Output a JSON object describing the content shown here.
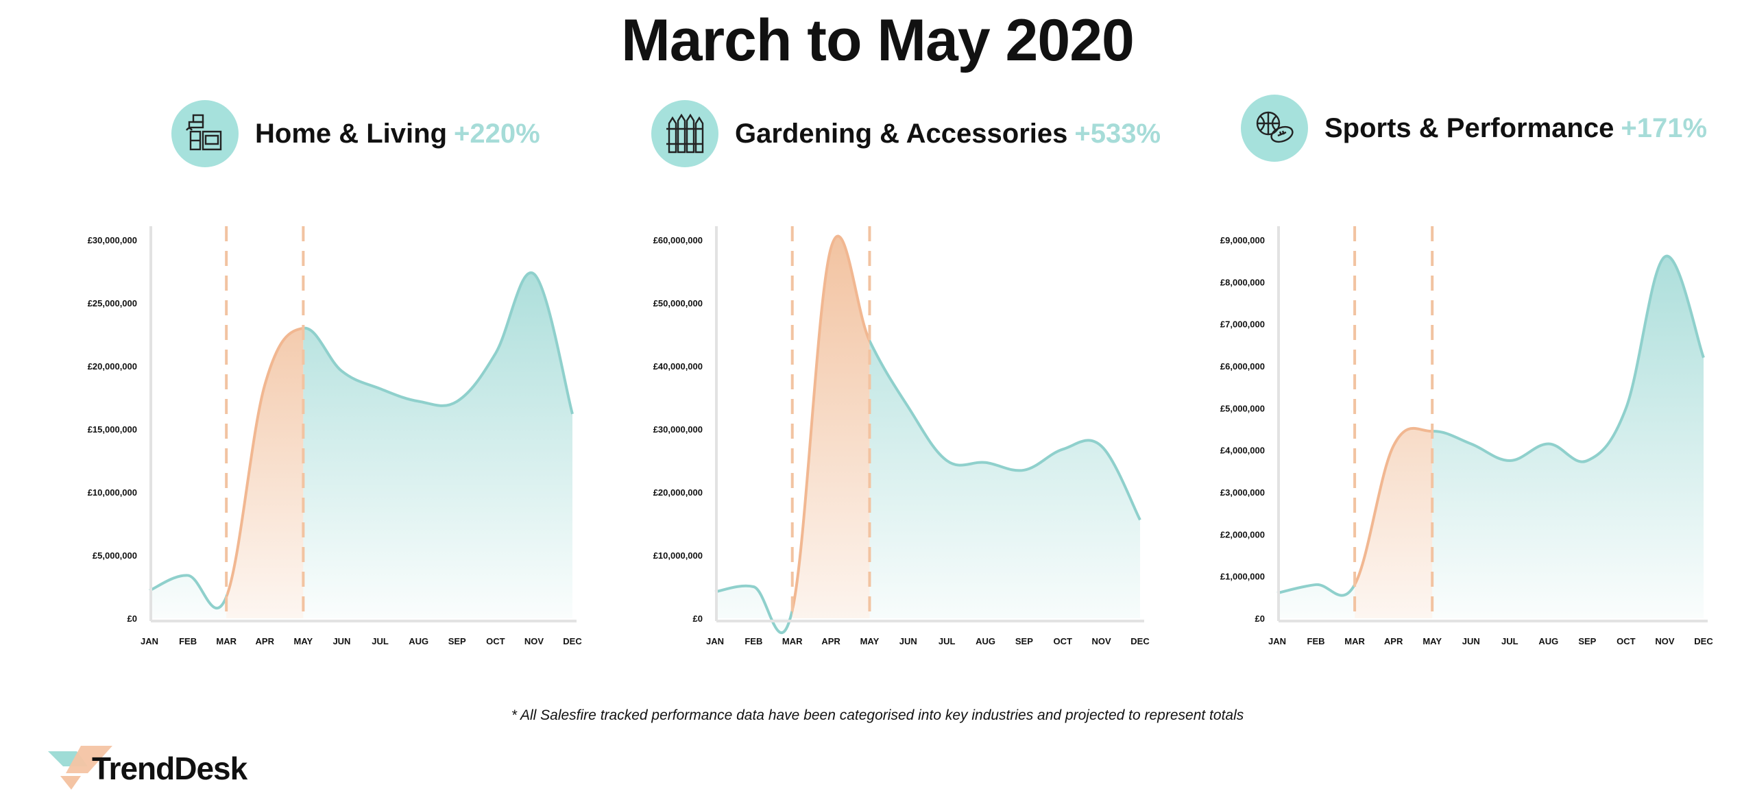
{
  "title": "March to May 2020",
  "footnote": "* All Salesfire tracked performance data have been categorised into key industries and projected to represent totals",
  "logo": {
    "text": "TrendDesk",
    "colors": [
      "#f4c4a4",
      "#9fdcd6"
    ]
  },
  "colors": {
    "teal": "#9fd9d5",
    "teal_line": "#8fd0cc",
    "orange": "#f2c3a1",
    "orange_line": "#f1b791",
    "dashed": "#f2c3a1",
    "icon_bg": "#a6e1dc",
    "pct": "#a6dcd8"
  },
  "chart_data": [
    {
      "type": "area",
      "name": "Home & Living",
      "change": "+220%",
      "icon": "furniture-icon",
      "categories": [
        "JAN",
        "FEB",
        "MAR",
        "APR",
        "MAY",
        "JUN",
        "JUL",
        "AUG",
        "SEP",
        "OCT",
        "NOV",
        "DEC"
      ],
      "values": [
        2200000,
        3400000,
        1700000,
        18500000,
        23000000,
        19600000,
        18200000,
        17200000,
        17200000,
        21000000,
        27300000,
        16200000
      ],
      "highlight_range": [
        "MAR",
        "MAY"
      ],
      "yticks": [
        "£0",
        "£5,000,000",
        "£10,000,000",
        "£15,000,000",
        "£20,000,000",
        "£25,000,000",
        "£30,000,000"
      ],
      "ylim": [
        0,
        30000000
      ],
      "ytick_step": 5000000
    },
    {
      "type": "area",
      "name": "Gardening & Accessories",
      "change": "+533%",
      "icon": "fence-icon",
      "categories": [
        "JAN",
        "FEB",
        "MAR",
        "APR",
        "MAY",
        "JUN",
        "JUL",
        "AUG",
        "SEP",
        "OCT",
        "NOV",
        "DEC"
      ],
      "values": [
        4200000,
        5000000,
        1300000,
        58700000,
        44000000,
        33500000,
        25000000,
        24700000,
        23500000,
        26800000,
        27300000,
        15600000
      ],
      "highlight_range": [
        "MAR",
        "MAY"
      ],
      "yticks": [
        "£0",
        "£10,000,000",
        "£20,000,000",
        "£30,000,000",
        "£40,000,000",
        "£50,000,000",
        "£60,000,000"
      ],
      "ylim": [
        0,
        60000000
      ],
      "ytick_step": 10000000
    },
    {
      "type": "area",
      "name": "Sports & Performance",
      "change": "+171%",
      "icon": "sports-balls-icon",
      "categories": [
        "JAN",
        "FEB",
        "MAR",
        "APR",
        "MAY",
        "JUN",
        "JUL",
        "AUG",
        "SEP",
        "OCT",
        "NOV",
        "DEC"
      ],
      "values": [
        600000,
        800000,
        800000,
        4100000,
        4450000,
        4150000,
        3750000,
        4150000,
        3750000,
        5000000,
        8600000,
        6200000
      ],
      "highlight_range": [
        "MAR",
        "MAY"
      ],
      "yticks": [
        "£0",
        "£1,000,000",
        "£2,000,000",
        "£3,000,000",
        "£4,000,000",
        "£5,000,000",
        "£6,000,000",
        "£7,000,000",
        "£8,000,000",
        "£9,000,000"
      ],
      "ylim": [
        0,
        9000000
      ],
      "ytick_step": 1000000
    }
  ]
}
